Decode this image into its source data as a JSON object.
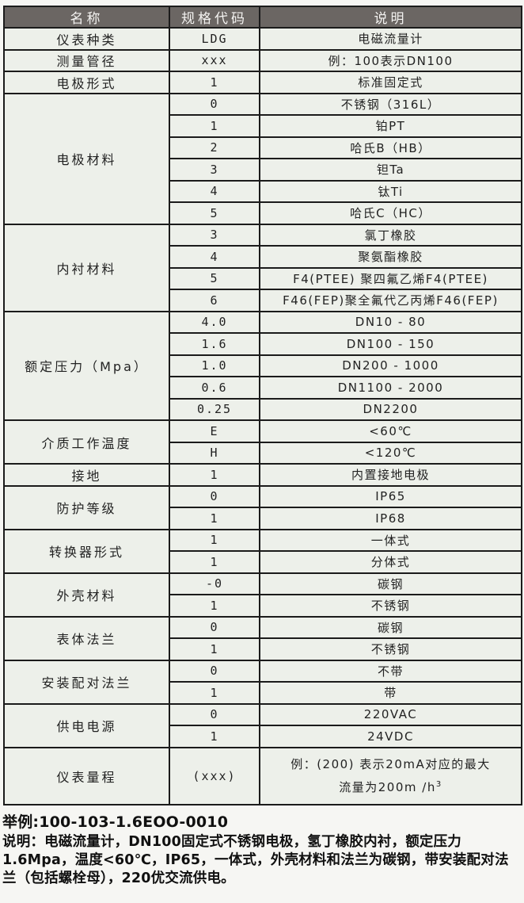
{
  "theme": {
    "header_bg": "#6b6663",
    "header_fg": "#f4f3f1",
    "cell_bg": "#edf0ea",
    "border": "#1b1b1b",
    "page_bg": "#f6f6f3",
    "text": "#222222"
  },
  "table": {
    "header": {
      "cols": [
        "名称",
        "规格代码",
        "说明"
      ]
    },
    "groups": [
      {
        "name": "仪表种类",
        "items": [
          {
            "code": "LDG",
            "desc": "电磁流量计"
          }
        ]
      },
      {
        "name": "测量管径",
        "items": [
          {
            "code": "xxx",
            "desc": "例：100表示DN100"
          }
        ]
      },
      {
        "name": "电极形式",
        "items": [
          {
            "code": "1",
            "desc": "标准固定式"
          }
        ]
      },
      {
        "name": "电极材料",
        "items": [
          {
            "code": "0",
            "desc": "不锈钢（316L）"
          },
          {
            "code": "1",
            "desc": "铂PT"
          },
          {
            "code": "2",
            "desc": "哈氏B（HB）"
          },
          {
            "code": "3",
            "desc": "钽Ta"
          },
          {
            "code": "4",
            "desc": "钛Ti"
          },
          {
            "code": "5",
            "desc": "哈氏C（HC）"
          }
        ]
      },
      {
        "name": "内衬材料",
        "items": [
          {
            "code": "3",
            "desc": "氯丁橡胶"
          },
          {
            "code": "4",
            "desc": "聚氨酯橡胶"
          },
          {
            "code": "5",
            "desc": "F4(PTEE) 聚四氟乙烯F4(PTEE)"
          },
          {
            "code": "6",
            "desc": "F46(FEP)聚全氟代乙丙烯F46(FEP)"
          }
        ]
      },
      {
        "name": "额定压力（Mpa）",
        "items": [
          {
            "code": "4.0",
            "desc": "DN10 - 80"
          },
          {
            "code": "1.6",
            "desc": "DN100 - 150"
          },
          {
            "code": "1.0",
            "desc": "DN200 - 1000"
          },
          {
            "code": "0.6",
            "desc": "DN1100 - 2000"
          },
          {
            "code": "0.25",
            "desc": "DN2200"
          }
        ]
      },
      {
        "name": "介质工作温度",
        "items": [
          {
            "code": "E",
            "desc": "<60℃"
          },
          {
            "code": "H",
            "desc": "<120℃"
          }
        ]
      },
      {
        "name": "接地",
        "items": [
          {
            "code": "1",
            "desc": "内置接地电极"
          }
        ]
      },
      {
        "name": "防护等级",
        "items": [
          {
            "code": "0",
            "desc": "IP65"
          },
          {
            "code": "1",
            "desc": "IP68"
          }
        ]
      },
      {
        "name": "转换器形式",
        "items": [
          {
            "code": "1",
            "desc": "一体式"
          },
          {
            "code": "1",
            "desc": "分体式"
          }
        ]
      },
      {
        "name": "外壳材料",
        "items": [
          {
            "code": "-0",
            "desc": "碳钢"
          },
          {
            "code": "1",
            "desc": "不锈钢"
          }
        ]
      },
      {
        "name": "表体法兰",
        "items": [
          {
            "code": "0",
            "desc": "碳钢"
          },
          {
            "code": "1",
            "desc": "不锈钢"
          }
        ]
      },
      {
        "name": "安装配对法兰",
        "items": [
          {
            "code": "0",
            "desc": "不带"
          },
          {
            "code": "1",
            "desc": "带"
          }
        ]
      },
      {
        "name": "供电电源",
        "items": [
          {
            "code": "0",
            "desc": "220VAC"
          },
          {
            "code": "1",
            "desc": "24VDC"
          }
        ]
      },
      {
        "name": "仪表量程",
        "items": [
          {
            "code": "(xxx)",
            "desc_lines": [
              "例：(200) 表示20mA对应的最大",
              "流量为200m /h"
            ],
            "desc_sup": "3"
          }
        ]
      }
    ]
  },
  "footer": {
    "example_label": "举例:100-103-1.6EOO-0010",
    "note": "说明：电磁流量计，DN100固定式不锈钢电极，氢丁橡胶内衬，额定压力1.6Mpa，温度<60℃，IP65，一体式，外壳材料和法兰为碳钢，带安装配对法兰（包括螺栓母），220优交流供电。"
  }
}
